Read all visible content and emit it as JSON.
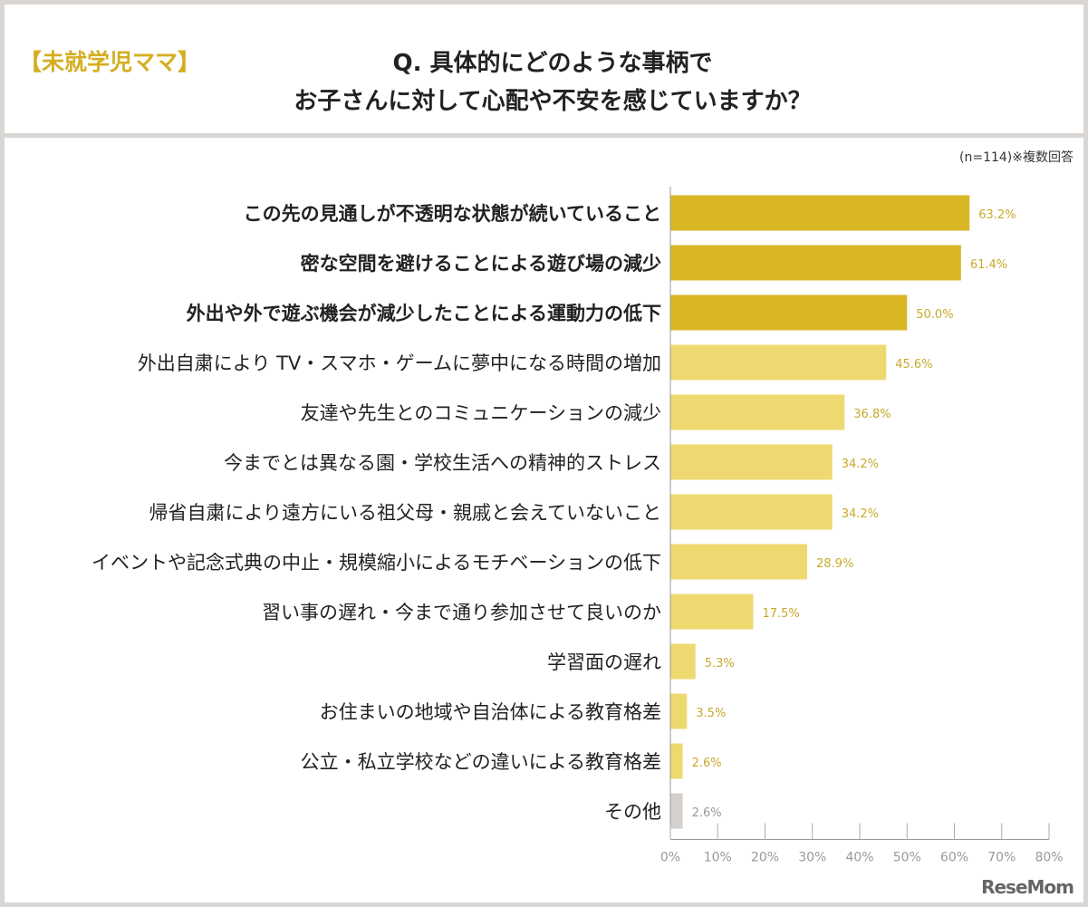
{
  "header": {
    "tag": "【未就学児ママ】",
    "title_line1": "Q. 具体的にどのような事柄で",
    "title_line2": "お子さんに対して心配や不安を感じていますか？"
  },
  "note": "(n=114)※複数回答",
  "logo": "ReseMom",
  "chart_data": {
    "type": "bar",
    "orientation": "horizontal",
    "categories": [
      "この先の見通しが不透明な状態が続いていること",
      "密な空間を避けることによる遊び場の減少",
      "外出や外で遊ぶ機会が減少したことによる運動力の低下",
      "外出自粛により TV・スマホ・ゲームに夢中になる時間の増加",
      "友達や先生とのコミュニケーションの減少",
      "今までとは異なる園・学校生活への精神的ストレス",
      "帰省自粛により遠方にいる祖父母・親戚と会えていないこと",
      "イベントや記念式典の中止・規模縮小によるモチベーションの低下",
      "習い事の遅れ・今まで通り参加させて良いのか",
      "学習面の遅れ",
      "お住まいの地域や自治体による教育格差",
      "公立・私立学校などの違いによる教育格差",
      "その他"
    ],
    "values": [
      63.2,
      61.4,
      50.0,
      45.6,
      36.8,
      34.2,
      34.2,
      28.9,
      17.5,
      5.3,
      3.5,
      2.6,
      2.6
    ],
    "value_labels": [
      "63.2%",
      "61.4%",
      "50.0%",
      "45.6%",
      "36.8%",
      "34.2%",
      "34.2%",
      "28.9%",
      "17.5%",
      "5.3%",
      "3.5%",
      "2.6%",
      "2.6%"
    ],
    "highlight_top": 3,
    "xlim": [
      0,
      80
    ],
    "xticks": [
      "0%",
      "10%",
      "20%",
      "30%",
      "40%",
      "50%",
      "60%",
      "70%",
      "80%"
    ],
    "colors": {
      "highlight": "#d9b624",
      "normal": "#eed970",
      "other": "#d4d0cd",
      "value_label": "#c9a92a",
      "other_label": "#999999"
    },
    "grid": false
  }
}
